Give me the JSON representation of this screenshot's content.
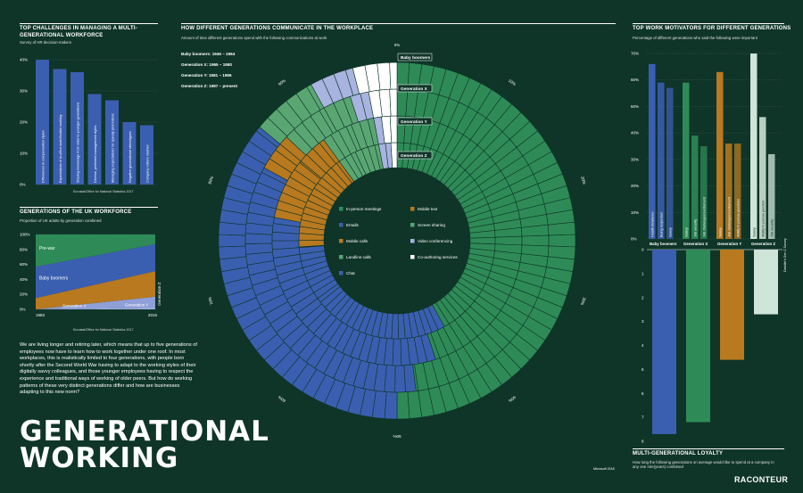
{
  "headline": {
    "line1": "GENERATIONAL",
    "line2": "WORKING"
  },
  "intro": "We are living longer and retiring later, which means that up to five generations of employees now have to learn how to work together under one roof. In most workplaces, this is realistically limited to four generations, with people born shortly after the Second World War having to adapt to the working styles of their digitally savvy colleagues, and those younger employees having to respect the experience and traditional ways of working of older peers. But how do working patterns of these very distinct generations differ and how are businesses adapting to this new norm?",
  "brand": "RACONTEUR",
  "colors": {
    "background": "#0f3528",
    "green": "#2e8b57",
    "blue": "#3b5fb0",
    "orange": "#b8791f",
    "light_green": "#59a672",
    "lavender": "#a8b3e0",
    "pale_green": "#cfe5d7",
    "white": "#ffffff"
  },
  "chart_data": [
    {
      "id": "challenges",
      "type": "bar",
      "title": "TOP CHALLENGES IN MANAGING A MULTI-GENERATIONAL WORKFORCE",
      "subtitle": "Survey of HR decision-makers",
      "source": "Eurostat/Office for National Statistics 2017",
      "categories": [
        "Differences in compensation styles",
        "Expectations of in-office work/flexible working",
        "Sharing knowledge from older to younger generations",
        "Diverse, preferred management styles",
        "Managing expectations for speedy promotions",
        "Negative generational stereotypes",
        "Company culture clashes"
      ],
      "values": [
        40,
        37,
        36,
        29,
        27,
        20,
        19
      ],
      "yticks": [
        "0%",
        "10%",
        "20%",
        "30%",
        "40%"
      ],
      "ylim": [
        0,
        40
      ]
    },
    {
      "id": "uk_workforce",
      "type": "area",
      "title": "GENERATIONS OF THE UK WORKFORCE",
      "subtitle": "Proportion of UK adults by generation combined",
      "source": "Eurostat/Office for National Statistics 2017",
      "x": [
        "1983",
        "2016"
      ],
      "yticks": [
        "0%",
        "20%",
        "40%",
        "60%",
        "80%",
        "100%"
      ],
      "series": [
        {
          "name": "Generation Z",
          "values": [
            0,
            2
          ]
        },
        {
          "name": "Generation Y",
          "values": [
            0,
            15
          ]
        },
        {
          "name": "Generation X",
          "values": [
            15,
            34
          ]
        },
        {
          "name": "Baby boomers",
          "values": [
            42,
            36
          ]
        },
        {
          "name": "Pre-war",
          "values": [
            43,
            13
          ]
        }
      ]
    },
    {
      "id": "communication",
      "type": "pie",
      "title": "HOW DIFFERENT GENERATIONS COMMUNICATE IN THE WORKPLACE",
      "subtitle": "Amount of time different generations spend with the following communications at work",
      "source": "Microsoft 2018",
      "generations": [
        {
          "name": "Baby boomers",
          "label": "Baby boomers: 1946 – 1964"
        },
        {
          "name": "Generation X",
          "label": "Generation X: 1965 – 1980"
        },
        {
          "name": "Generation Y",
          "label": "Generation Y: 1981 – 1996"
        },
        {
          "name": "Generation Z",
          "label": "Generation Z: 1997 – present"
        }
      ],
      "percent_ticks": [
        "0%",
        "10%",
        "20%",
        "30%",
        "40%",
        "50%",
        "60%",
        "70%",
        "80%",
        "90%",
        "100%"
      ],
      "categories": [
        "In-person meetings",
        "Mobile text",
        "Emails",
        "Screen sharing",
        "Mobile calls",
        "Video conferencing",
        "Landline calls",
        "Co-authoring services",
        "Chat"
      ],
      "series": [
        {
          "name": "Baby boomers",
          "values": {
            "In-person meetings": 50,
            "Emails": 36,
            "Mobile calls": 0,
            "Landline calls": 6,
            "Chat": 0,
            "Mobile text": 0,
            "Screen sharing": 0,
            "Video conferencing": 4,
            "Co-authoring services": 4
          }
        },
        {
          "name": "Generation X",
          "values": {
            "In-person meetings": 48,
            "Emails": 35,
            "Mobile calls": 3,
            "Landline calls": 5,
            "Chat": 0,
            "Mobile text": 1,
            "Screen sharing": 3,
            "Video conferencing": 2,
            "Co-authoring services": 3
          }
        },
        {
          "name": "Generation Y",
          "values": {
            "In-person meetings": 45,
            "Emails": 30,
            "Mobile calls": 8,
            "Landline calls": 4,
            "Chat": 3,
            "Mobile text": 4,
            "Screen sharing": 3,
            "Video conferencing": 1,
            "Co-authoring services": 2
          }
        },
        {
          "name": "Generation Z",
          "values": {
            "In-person meetings": 42,
            "Emails": 23,
            "Mobile calls": 11,
            "Landline calls": 3,
            "Chat": 9,
            "Mobile text": 5,
            "Screen sharing": 4,
            "Video conferencing": 2,
            "Co-authoring services": 1
          }
        }
      ]
    },
    {
      "id": "motivators",
      "type": "bar",
      "title": "TOP WORK MOTIVATORS FOR DIFFERENT GENERATIONS",
      "subtitle": "Percentage of different generations who said the following were important",
      "source": "Deloitte's Gen Z Survey",
      "yticks": [
        "0%",
        "10%",
        "20%",
        "30%",
        "40%",
        "50%",
        "60%",
        "70%"
      ],
      "ylim": [
        0,
        70
      ],
      "groups": [
        {
          "name": "Baby boomers",
          "bars": [
            {
              "label": "Health insurance",
              "value": 66
            },
            {
              "label": "Being respected",
              "value": 59
            },
            {
              "label": "Salary",
              "value": 57
            }
          ]
        },
        {
          "name": "Generation X",
          "bars": [
            {
              "label": "Salary",
              "value": 59
            },
            {
              "label": "Job security",
              "value": 39
            },
            {
              "label": "Job challenges/excitement",
              "value": 35
            }
          ]
        },
        {
          "name": "Generation Y",
          "bars": [
            {
              "label": "Salary",
              "value": 63
            },
            {
              "label": "Job challenges/excitement",
              "value": 36
            },
            {
              "label": "Ability to pursue passions",
              "value": 36
            }
          ]
        },
        {
          "name": "Generation Z",
          "bars": [
            {
              "label": "Salary",
              "value": 70
            },
            {
              "label": "Ability to pursue passion",
              "value": 46
            },
            {
              "label": "Job security",
              "value": 32
            }
          ]
        }
      ]
    },
    {
      "id": "loyalty",
      "type": "bar",
      "title": "MULTI-GENERATIONAL LOYALTY",
      "subtitle": "How long the following generations on average would like to spend at a company in any one role(years) combined",
      "source": "Deloitte's Gen Z Survey",
      "categories": [
        "Baby boomers",
        "Generation X",
        "Generation Y",
        "Generation Z"
      ],
      "values": [
        7.7,
        7.2,
        4.6,
        2.7
      ],
      "yticks": [
        "0",
        "1",
        "2",
        "3",
        "4",
        "5",
        "6",
        "7",
        "8"
      ],
      "ylim": [
        0,
        8
      ]
    }
  ]
}
